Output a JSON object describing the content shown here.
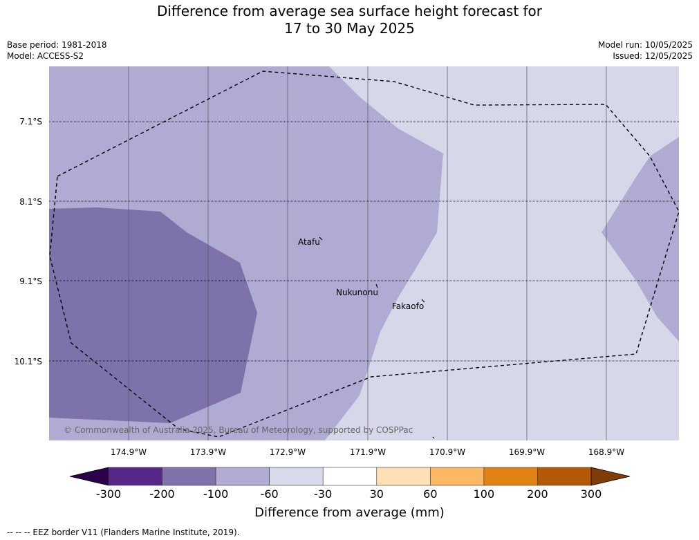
{
  "header": {
    "title_line1": "Difference from average sea surface height forecast for",
    "title_line2": "17 to 30 May 2025",
    "base_period": "Base period: 1981-2018",
    "model": "Model: ACCESS-S2",
    "model_run": "Model run: 10/05/2025",
    "issued": "Issued: 12/05/2025"
  },
  "map": {
    "lat_labels": [
      "7.1°S",
      "8.1°S",
      "9.1°S",
      "10.1°S"
    ],
    "lon_labels": [
      "174.9°W",
      "173.9°W",
      "172.9°W",
      "171.9°W",
      "170.9°W",
      "169.9°W",
      "168.9°W"
    ],
    "places": [
      "Atafu",
      "Nukunonu",
      "Fakaofo"
    ],
    "copyright": "© Commonwealth of Australia 2025, Bureau of Meteorology, supported by COSPPac",
    "colors": {
      "bin_-200_-100": "#7e72ab",
      "bin_-100_-60": "#b0abd2",
      "bin_-60_-30": "#d7d7ea"
    }
  },
  "colorbar": {
    "title": "Difference from average (mm)",
    "ticks": [
      "-300",
      "-200",
      "-100",
      "-60",
      "-30",
      "30",
      "60",
      "100",
      "200",
      "300"
    ],
    "colors": [
      "#2d004b",
      "#542788",
      "#8073ac",
      "#b2abd2",
      "#d8daeb",
      "#ffffff",
      "#fee0b6",
      "#fdb863",
      "#e08214",
      "#b35806",
      "#7f3b08"
    ]
  },
  "footer": {
    "legend": "--  --  -- EEZ border V11 (Flanders Marine Institute, 2019)."
  }
}
